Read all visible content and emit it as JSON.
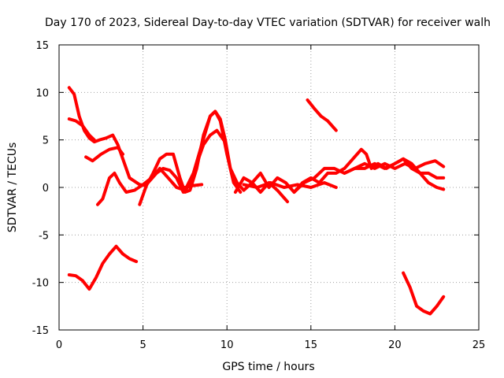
{
  "chart_data": {
    "type": "line",
    "title": "Day 170 of 2023, Sidereal Day-to-day VTEC variation (SDTVAR) for receiver walh",
    "xlabel": "GPS time / hours",
    "ylabel": "SDTVAR / TECUs",
    "xlim": [
      0,
      25
    ],
    "ylim": [
      -15,
      15
    ],
    "xticks": [
      0,
      5,
      10,
      15,
      20,
      25
    ],
    "yticks": [
      -15,
      -10,
      -5,
      0,
      5,
      10,
      15
    ],
    "xtick_labels": [
      "0",
      "5",
      "10",
      "15",
      "20",
      "25"
    ],
    "ytick_labels": [
      "-15",
      "-10",
      "-5",
      "0",
      "5",
      "10",
      "15"
    ],
    "grid": true,
    "line_color": "#ff0000",
    "series": [
      {
        "name": "s1",
        "x": [
          0.6,
          0.9,
          1.2,
          1.5,
          1.8,
          2.1,
          2.4,
          2.8,
          3.2,
          3.5,
          3.8,
          4.2,
          4.8,
          5.2
        ],
        "y": [
          10.5,
          9.8,
          7.5,
          6.0,
          5.2,
          4.8,
          5.0,
          5.2,
          5.5,
          4.5,
          3.0,
          1.0,
          0.3,
          0.2
        ]
      },
      {
        "name": "s2",
        "x": [
          0.6,
          1.0,
          1.4,
          1.8,
          2.1
        ],
        "y": [
          7.2,
          7.0,
          6.5,
          5.5,
          5.0
        ]
      },
      {
        "name": "s3",
        "x": [
          1.6,
          2.0,
          2.5,
          3.0,
          3.5,
          3.8
        ],
        "y": [
          3.2,
          2.8,
          3.5,
          4.0,
          4.2,
          3.5
        ]
      },
      {
        "name": "s4",
        "x": [
          2.3,
          2.6,
          3.0,
          3.3,
          3.6,
          4.0,
          4.5,
          5.0,
          5.5,
          6.0,
          6.5,
          7.0,
          7.5,
          8.0,
          8.5,
          9.0,
          9.3,
          9.6,
          9.9,
          10.2,
          10.6,
          11.0,
          11.5,
          12.0,
          12.5,
          13.0,
          13.6
        ],
        "y": [
          -1.8,
          -1.2,
          1.0,
          1.5,
          0.5,
          -0.5,
          -0.3,
          0.3,
          1.0,
          2.0,
          1.0,
          0.0,
          -0.3,
          1.5,
          4.5,
          7.5,
          8.0,
          7.2,
          5.0,
          2.0,
          0.5,
          -0.3,
          0.5,
          -0.5,
          0.5,
          -0.3,
          -1.5
        ]
      },
      {
        "name": "s5",
        "x": [
          4.8,
          5.2,
          5.6,
          6.0,
          6.4,
          6.8,
          7.2,
          7.5,
          7.8,
          8.2,
          8.6,
          9.0,
          9.3,
          9.6,
          10.0,
          10.4,
          10.8
        ],
        "y": [
          -1.8,
          0.2,
          1.5,
          3.0,
          3.5,
          3.5,
          1.0,
          -0.5,
          -0.3,
          2.0,
          5.5,
          7.5,
          8.0,
          7.0,
          3.5,
          0.5,
          -0.5
        ]
      },
      {
        "name": "s6",
        "x": [
          5.3,
          5.8,
          6.2,
          6.6,
          7.0,
          7.4,
          7.8,
          8.2,
          8.6,
          9.0,
          9.4,
          9.8
        ],
        "y": [
          0.5,
          1.5,
          2.0,
          1.8,
          1.0,
          -0.5,
          0.3,
          2.5,
          4.5,
          5.5,
          6.0,
          5.0
        ]
      },
      {
        "name": "s7",
        "x": [
          7.5,
          8.0,
          8.5
        ],
        "y": [
          0.0,
          0.2,
          0.3
        ]
      },
      {
        "name": "s8",
        "x": [
          10.5,
          11.0,
          11.5,
          12.0,
          12.5,
          13.0,
          13.5,
          14.0,
          14.5,
          15.0,
          15.5,
          16.0,
          16.5,
          17.0,
          17.5,
          18.0,
          18.3,
          18.6,
          19.0,
          19.5,
          20.0,
          20.5,
          21.0,
          21.5,
          22.0,
          22.5,
          22.9
        ],
        "y": [
          -0.5,
          1.0,
          0.5,
          1.5,
          0.0,
          1.0,
          0.5,
          -0.5,
          0.5,
          1.0,
          0.5,
          1.5,
          1.5,
          2.0,
          3.0,
          4.0,
          3.5,
          2.0,
          2.5,
          2.0,
          2.5,
          3.0,
          2.5,
          1.5,
          1.5,
          1.0,
          1.0
        ]
      },
      {
        "name": "s9",
        "x": [
          11.0,
          11.8,
          12.6,
          13.4,
          14.2,
          15.0,
          15.8,
          16.5
        ],
        "y": [
          0.3,
          0.0,
          0.5,
          0.0,
          0.3,
          0.0,
          0.5,
          0.0
        ]
      },
      {
        "name": "s10",
        "x": [
          14.0,
          14.6,
          15.2,
          15.8,
          16.4,
          17.0,
          17.6,
          18.2,
          18.8,
          19.4,
          20.0,
          20.5,
          21.0,
          21.5,
          22.0,
          22.5,
          22.9
        ],
        "y": [
          -0.5,
          0.5,
          1.0,
          2.0,
          2.0,
          1.5,
          2.0,
          2.0,
          2.5,
          2.0,
          2.5,
          3.0,
          2.0,
          1.5,
          0.5,
          0.0,
          -0.2
        ]
      },
      {
        "name": "s11",
        "x": [
          17.0,
          17.6,
          18.2,
          18.8,
          19.4,
          20.0,
          20.6,
          21.2,
          21.8,
          22.4,
          22.9
        ],
        "y": [
          1.5,
          2.0,
          2.5,
          2.0,
          2.5,
          2.0,
          2.5,
          2.0,
          2.5,
          2.8,
          2.2
        ]
      },
      {
        "name": "s12",
        "x": [
          14.8,
          15.2,
          15.6,
          16.0,
          16.5
        ],
        "y": [
          9.2,
          8.3,
          7.5,
          7.0,
          6.0
        ]
      },
      {
        "name": "s13",
        "x": [
          0.6,
          1.0,
          1.4,
          1.8,
          2.2,
          2.6,
          3.0,
          3.4,
          3.8,
          4.2,
          4.6
        ],
        "y": [
          -9.2,
          -9.3,
          -9.8,
          -10.7,
          -9.5,
          -8.0,
          -7.0,
          -6.2,
          -7.0,
          -7.5,
          -7.8
        ]
      },
      {
        "name": "s14",
        "x": [
          20.5,
          20.9,
          21.3,
          21.7,
          22.1,
          22.5,
          22.9
        ],
        "y": [
          -9.0,
          -10.5,
          -12.5,
          -13.0,
          -13.3,
          -12.5,
          -11.5
        ]
      }
    ]
  }
}
